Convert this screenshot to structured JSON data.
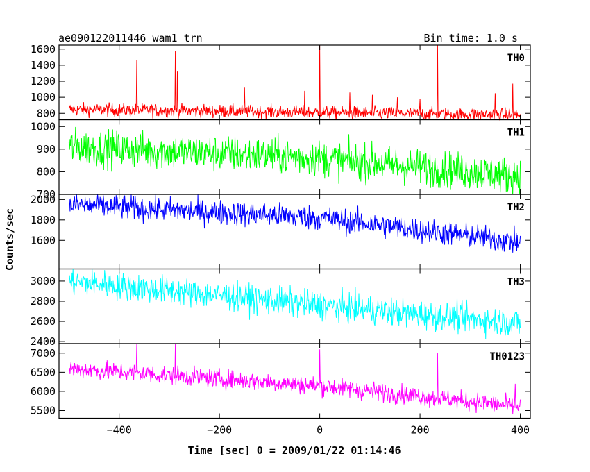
{
  "chart_data": {
    "type": "line",
    "title": "ae090122011446_wam1_trn",
    "bin_time": "Bin time: 1.0 s",
    "xlabel": "Time [sec] 0 = 2009/01/22 01:14:46",
    "ylabel": "Counts/sec",
    "xlim": [
      -520,
      420
    ],
    "xticks": [
      -400,
      -200,
      0,
      200,
      400
    ],
    "x_range": [
      -500,
      400
    ],
    "grid": false,
    "panels": [
      {
        "name": "TH0",
        "color": "#ff0000",
        "ylim": [
          720,
          1650
        ],
        "yticks": [
          800,
          1000,
          1200,
          1400,
          1600
        ],
        "trend": [
          [
            -500,
            850
          ],
          [
            400,
            780
          ]
        ],
        "noise": 40,
        "spikes": [
          [
            -365,
            1460
          ],
          [
            -288,
            1580
          ],
          [
            -284,
            1320
          ],
          [
            -150,
            1120
          ],
          [
            -30,
            1080
          ],
          [
            0,
            1650
          ],
          [
            60,
            1060
          ],
          [
            105,
            1030
          ],
          [
            155,
            1000
          ],
          [
            200,
            980
          ],
          [
            235,
            1650
          ],
          [
            350,
            1050
          ],
          [
            385,
            1170
          ]
        ]
      },
      {
        "name": "TH1",
        "color": "#00ff00",
        "ylim": [
          700,
          1030
        ],
        "yticks": [
          700,
          800,
          900,
          1000
        ],
        "trend": [
          [
            -500,
            910
          ],
          [
            0,
            860
          ],
          [
            400,
            780
          ]
        ],
        "noise": 40,
        "spikes": []
      },
      {
        "name": "TH2",
        "color": "#0000ff",
        "ylim": [
          1320,
          2050
        ],
        "yticks": [
          1600,
          1800,
          2000
        ],
        "trend": [
          [
            -500,
            1950
          ],
          [
            0,
            1820
          ],
          [
            400,
            1580
          ]
        ],
        "noise": 60,
        "spikes": []
      },
      {
        "name": "TH3",
        "color": "#00ffff",
        "ylim": [
          2380,
          3120
        ],
        "yticks": [
          2400,
          2600,
          2800,
          3000
        ],
        "trend": [
          [
            -500,
            3000
          ],
          [
            0,
            2760
          ],
          [
            400,
            2580
          ]
        ],
        "noise": 70,
        "spikes": []
      },
      {
        "name": "TH0123",
        "color": "#ff00ff",
        "ylim": [
          5300,
          7250
        ],
        "yticks": [
          5500,
          6000,
          6500,
          7000
        ],
        "trend": [
          [
            -500,
            6600
          ],
          [
            0,
            6150
          ],
          [
            400,
            5600
          ]
        ],
        "noise": 120,
        "spikes": [
          [
            -365,
            7250
          ],
          [
            -288,
            7250
          ],
          [
            0,
            7100
          ],
          [
            235,
            7000
          ],
          [
            390,
            6200
          ]
        ]
      }
    ]
  }
}
